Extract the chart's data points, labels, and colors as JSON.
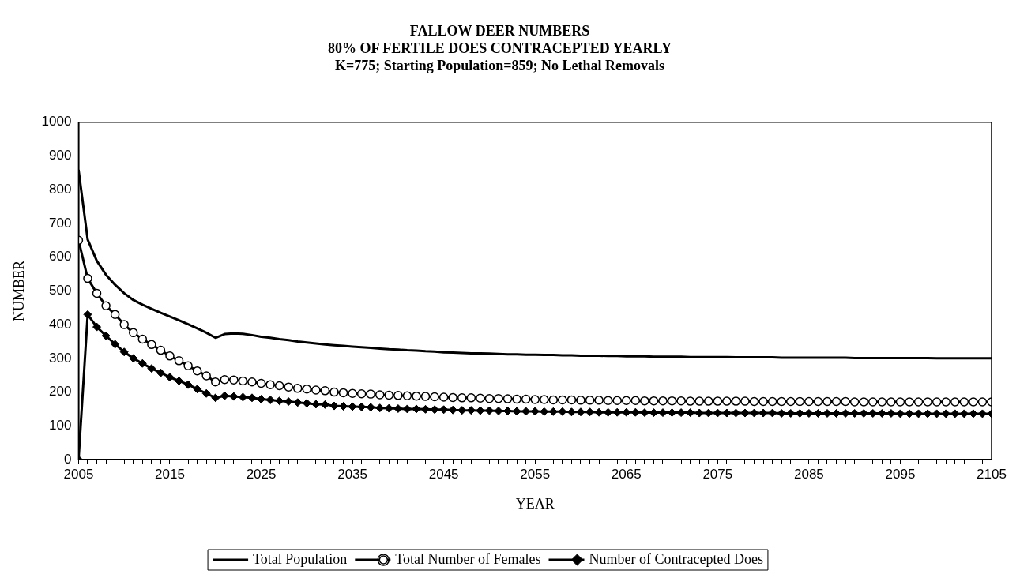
{
  "chart_data": {
    "type": "line",
    "title": "FALLOW DEER NUMBERS",
    "subtitle": "80% OF FERTILE DOES CONTRACEPTED YEARLY\nK=775; Starting Population=859; No Lethal Removals",
    "xlabel": "YEAR",
    "ylabel": "NUMBER",
    "x": [
      2005,
      2006,
      2007,
      2008,
      2009,
      2010,
      2011,
      2012,
      2013,
      2014,
      2015,
      2016,
      2017,
      2018,
      2019,
      2020,
      2021,
      2022,
      2023,
      2024,
      2025,
      2026,
      2027,
      2028,
      2029,
      2030,
      2031,
      2032,
      2033,
      2034,
      2035,
      2036,
      2037,
      2038,
      2039,
      2040,
      2041,
      2042,
      2043,
      2044,
      2045,
      2046,
      2047,
      2048,
      2049,
      2050,
      2051,
      2052,
      2053,
      2054,
      2055,
      2056,
      2057,
      2058,
      2059,
      2060,
      2061,
      2062,
      2063,
      2064,
      2065,
      2066,
      2067,
      2068,
      2069,
      2070,
      2071,
      2072,
      2073,
      2074,
      2075,
      2076,
      2077,
      2078,
      2079,
      2080,
      2081,
      2082,
      2083,
      2084,
      2085,
      2086,
      2087,
      2088,
      2089,
      2090,
      2091,
      2092,
      2093,
      2094,
      2095,
      2096,
      2097,
      2098,
      2099,
      2100,
      2101,
      2102,
      2103,
      2104,
      2105
    ],
    "series": [
      {
        "name": "Total Population",
        "color": "#000000",
        "marker": "none",
        "values": [
          859,
          652,
          589,
          548,
          518,
          493,
          473,
          459,
          447,
          435,
          424,
          413,
          401,
          389,
          376,
          361,
          372,
          374,
          373,
          369,
          364,
          361,
          357,
          354,
          350,
          347,
          344,
          341,
          339,
          337,
          335,
          333,
          331,
          329,
          327,
          326,
          324,
          323,
          321,
          320,
          318,
          317,
          316,
          315,
          315,
          314,
          313,
          312,
          312,
          311,
          311,
          310,
          310,
          309,
          309,
          308,
          308,
          308,
          307,
          307,
          306,
          306,
          306,
          305,
          305,
          305,
          305,
          304,
          304,
          304,
          304,
          304,
          303,
          303,
          303,
          303,
          303,
          302,
          302,
          302,
          302,
          302,
          302,
          302,
          302,
          301,
          301,
          301,
          301,
          301,
          301,
          301,
          301,
          301,
          300,
          300,
          300,
          300,
          300,
          300,
          300
        ]
      },
      {
        "name": "Total Number of Females",
        "color": "#000000",
        "marker": "circle",
        "values": [
          650,
          537,
          493,
          456,
          430,
          400,
          376,
          357,
          341,
          324,
          307,
          293,
          278,
          263,
          248,
          230,
          237,
          236,
          233,
          230,
          226,
          222,
          219,
          215,
          211,
          209,
          206,
          204,
          200,
          198,
          196,
          195,
          194,
          192,
          191,
          190,
          189,
          188,
          187,
          186,
          185,
          184,
          183,
          183,
          182,
          181,
          181,
          180,
          179,
          179,
          178,
          178,
          177,
          177,
          177,
          176,
          176,
          176,
          175,
          175,
          175,
          175,
          174,
          174,
          174,
          174,
          174,
          173,
          173,
          173,
          173,
          173,
          173,
          173,
          172,
          172,
          172,
          172,
          172,
          172,
          172,
          172,
          172,
          172,
          172,
          171,
          171,
          171,
          171,
          171,
          171,
          171,
          171,
          171,
          171,
          171,
          171,
          171,
          171,
          171,
          171
        ]
      },
      {
        "name": "Number of Contracepted Does",
        "color": "#000000",
        "marker": "diamond",
        "values": [
          0,
          430,
          393,
          367,
          342,
          319,
          300,
          285,
          270,
          257,
          244,
          233,
          222,
          209,
          196,
          183,
          189,
          187,
          185,
          183,
          179,
          177,
          174,
          172,
          169,
          167,
          164,
          163,
          159,
          158,
          157,
          156,
          155,
          153,
          152,
          151,
          150,
          150,
          149,
          148,
          148,
          147,
          146,
          146,
          145,
          145,
          144,
          144,
          143,
          143,
          143,
          142,
          142,
          142,
          141,
          141,
          141,
          140,
          140,
          140,
          140,
          140,
          139,
          139,
          139,
          139,
          139,
          139,
          138,
          138,
          138,
          138,
          138,
          138,
          138,
          138,
          138,
          137,
          137,
          137,
          137,
          137,
          137,
          137,
          137,
          137,
          137,
          137,
          137,
          137,
          136,
          136,
          136,
          136,
          136,
          136,
          136,
          136,
          136,
          136,
          136
        ]
      }
    ],
    "xlim": [
      2005,
      2105
    ],
    "xticks": [
      2005,
      {
        "value": 2006,
        "label": null
      },
      {
        "value": 2007,
        "label": null
      },
      {
        "value": 2008,
        "label": null
      },
      {
        "value": 2009,
        "label": null
      },
      {
        "value": 2010,
        "label": null
      },
      {
        "value": 2011,
        "label": null
      },
      {
        "value": 2012,
        "label": null
      },
      {
        "value": 2013,
        "label": null
      },
      {
        "value": 2014,
        "label": null
      },
      2015,
      {
        "value": 2016,
        "label": null
      },
      {
        "value": 2017,
        "label": null
      },
      {
        "value": 2018,
        "label": null
      },
      {
        "value": 2019,
        "label": null
      },
      {
        "value": 2020,
        "label": null
      },
      {
        "value": 2021,
        "label": null
      },
      {
        "value": 2022,
        "label": null
      },
      {
        "value": 2023,
        "label": null
      },
      {
        "value": 2024,
        "label": null
      },
      2025,
      {
        "value": 2026,
        "label": null
      },
      {
        "value": 2027,
        "label": null
      },
      {
        "value": 2028,
        "label": null
      },
      {
        "value": 2029,
        "label": null
      },
      {
        "value": 2030,
        "label": null
      },
      {
        "value": 2031,
        "label": null
      },
      {
        "value": 2032,
        "label": null
      },
      {
        "value": 2033,
        "label": null
      },
      {
        "value": 2034,
        "label": null
      },
      2035,
      {
        "value": 2036,
        "label": null
      },
      {
        "value": 2037,
        "label": null
      },
      {
        "value": 2038,
        "label": null
      },
      {
        "value": 2039,
        "label": null
      },
      {
        "value": 2040,
        "label": null
      },
      {
        "value": 2041,
        "label": null
      },
      {
        "value": 2042,
        "label": null
      },
      {
        "value": 2043,
        "label": null
      },
      {
        "value": 2044,
        "label": null
      },
      2045,
      {
        "value": 2046,
        "label": null
      },
      {
        "value": 2047,
        "label": null
      },
      {
        "value": 2048,
        "label": null
      },
      {
        "value": 2049,
        "label": null
      },
      {
        "value": 2050,
        "label": null
      },
      {
        "value": 2051,
        "label": null
      },
      {
        "value": 2052,
        "label": null
      },
      {
        "value": 2053,
        "label": null
      },
      {
        "value": 2054,
        "label": null
      },
      2055,
      {
        "value": 2056,
        "label": null
      },
      {
        "value": 2057,
        "label": null
      },
      {
        "value": 2058,
        "label": null
      },
      {
        "value": 2059,
        "label": null
      },
      {
        "value": 2060,
        "label": null
      },
      {
        "value": 2061,
        "label": null
      },
      {
        "value": 2062,
        "label": null
      },
      {
        "value": 2063,
        "label": null
      },
      {
        "value": 2064,
        "label": null
      },
      2065,
      {
        "value": 2066,
        "label": null
      },
      {
        "value": 2067,
        "label": null
      },
      {
        "value": 2068,
        "label": null
      },
      {
        "value": 2069,
        "label": null
      },
      {
        "value": 2070,
        "label": null
      },
      {
        "value": 2071,
        "label": null
      },
      {
        "value": 2072,
        "label": null
      },
      {
        "value": 2073,
        "label": null
      },
      {
        "value": 2074,
        "label": null
      },
      2075,
      {
        "value": 2076,
        "label": null
      },
      {
        "value": 2077,
        "label": null
      },
      {
        "value": 2078,
        "label": null
      },
      {
        "value": 2079,
        "label": null
      },
      {
        "value": 2080,
        "label": null
      },
      {
        "value": 2081,
        "label": null
      },
      {
        "value": 2082,
        "label": null
      },
      {
        "value": 2083,
        "label": null
      },
      {
        "value": 2084,
        "label": null
      },
      2085,
      {
        "value": 2086,
        "label": null
      },
      {
        "value": 2087,
        "label": null
      },
      {
        "value": 2088,
        "label": null
      },
      {
        "value": 2089,
        "label": null
      },
      {
        "value": 2090,
        "label": null
      },
      {
        "value": 2091,
        "label": null
      },
      {
        "value": 2092,
        "label": null
      },
      {
        "value": 2093,
        "label": null
      },
      {
        "value": 2094,
        "label": null
      },
      2095,
      {
        "value": 2096,
        "label": null
      },
      {
        "value": 2097,
        "label": null
      },
      {
        "value": 2098,
        "label": null
      },
      {
        "value": 2099,
        "label": null
      },
      {
        "value": 2100,
        "label": null
      },
      {
        "value": 2101,
        "label": null
      },
      {
        "value": 2102,
        "label": null
      },
      {
        "value": 2103,
        "label": null
      },
      {
        "value": 2104,
        "label": null
      },
      2105
    ],
    "ylim": [
      0,
      1000
    ],
    "yticks": [
      0,
      100,
      200,
      300,
      400,
      500,
      600,
      700,
      800,
      900,
      1000
    ],
    "grid": false,
    "legend": "bottom",
    "line_style": "solid"
  }
}
